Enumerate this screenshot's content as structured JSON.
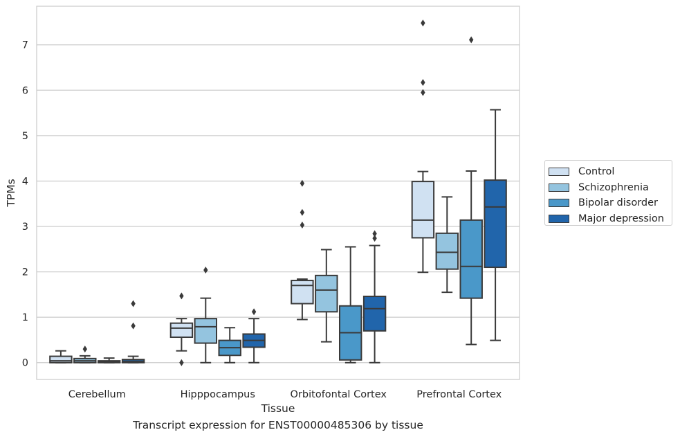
{
  "chart_data": {
    "type": "box",
    "caption": "Transcript expression for ENST00000485306 by tissue",
    "xlabel": "Tissue",
    "ylabel": "TPMs",
    "ylim": [
      -0.37,
      7.85
    ],
    "yticks": [
      0,
      1,
      2,
      3,
      4,
      5,
      6,
      7
    ],
    "grid": true,
    "legend_position": "right",
    "categories": [
      "Cerebellum",
      "Hipppocampus",
      "Orbitofontal Cortex",
      "Prefrontal Cortex"
    ],
    "series": [
      {
        "name": "Control",
        "color": "#d0e1f2",
        "boxes": [
          {
            "whislo": 0.0,
            "q1": 0.0,
            "med": 0.04,
            "q3": 0.14,
            "whishi": 0.26,
            "fliers": []
          },
          {
            "whislo": 0.26,
            "q1": 0.56,
            "med": 0.76,
            "q3": 0.87,
            "whishi": 0.97,
            "fliers": [
              1.47,
              0.0
            ]
          },
          {
            "whislo": 0.95,
            "q1": 1.3,
            "med": 1.7,
            "q3": 1.81,
            "whishi": 1.84,
            "fliers": [
              3.95,
              3.31,
              3.03
            ]
          },
          {
            "whislo": 1.99,
            "q1": 2.75,
            "med": 3.14,
            "q3": 3.99,
            "whishi": 4.21,
            "fliers": [
              7.48,
              6.17,
              5.95
            ]
          }
        ]
      },
      {
        "name": "Schizophrenia",
        "color": "#94c4df",
        "boxes": [
          {
            "whislo": 0.0,
            "q1": 0.0,
            "med": 0.04,
            "q3": 0.09,
            "whishi": 0.15,
            "fliers": [
              0.3
            ]
          },
          {
            "whislo": 0.0,
            "q1": 0.43,
            "med": 0.79,
            "q3": 0.97,
            "whishi": 1.42,
            "fliers": [
              2.04
            ]
          },
          {
            "whislo": 0.46,
            "q1": 1.12,
            "med": 1.6,
            "q3": 1.92,
            "whishi": 2.49,
            "fliers": []
          },
          {
            "whislo": 1.55,
            "q1": 2.06,
            "med": 2.43,
            "q3": 2.85,
            "whishi": 3.65,
            "fliers": []
          }
        ]
      },
      {
        "name": "Bipolar disorder",
        "color": "#4a98c9",
        "boxes": [
          {
            "whislo": 0.0,
            "q1": 0.0,
            "med": 0.02,
            "q3": 0.04,
            "whishi": 0.1,
            "fliers": []
          },
          {
            "whislo": 0.0,
            "q1": 0.16,
            "med": 0.33,
            "q3": 0.49,
            "whishi": 0.77,
            "fliers": []
          },
          {
            "whislo": 0.0,
            "q1": 0.06,
            "med": 0.66,
            "q3": 1.25,
            "whishi": 2.55,
            "fliers": []
          },
          {
            "whislo": 0.4,
            "q1": 1.42,
            "med": 2.12,
            "q3": 3.14,
            "whishi": 4.22,
            "fliers": [
              7.11
            ]
          }
        ]
      },
      {
        "name": "Major depression",
        "color": "#2165ab",
        "boxes": [
          {
            "whislo": 0.0,
            "q1": 0.0,
            "med": 0.03,
            "q3": 0.07,
            "whishi": 0.14,
            "fliers": [
              1.3,
              0.81
            ]
          },
          {
            "whislo": 0.0,
            "q1": 0.34,
            "med": 0.49,
            "q3": 0.63,
            "whishi": 0.97,
            "fliers": [
              1.12
            ]
          },
          {
            "whislo": 0.0,
            "q1": 0.7,
            "med": 1.19,
            "q3": 1.46,
            "whishi": 2.58,
            "fliers": [
              2.84,
              2.74
            ]
          },
          {
            "whislo": 0.49,
            "q1": 2.1,
            "med": 3.43,
            "q3": 4.02,
            "whishi": 5.57,
            "fliers": []
          }
        ]
      }
    ]
  }
}
